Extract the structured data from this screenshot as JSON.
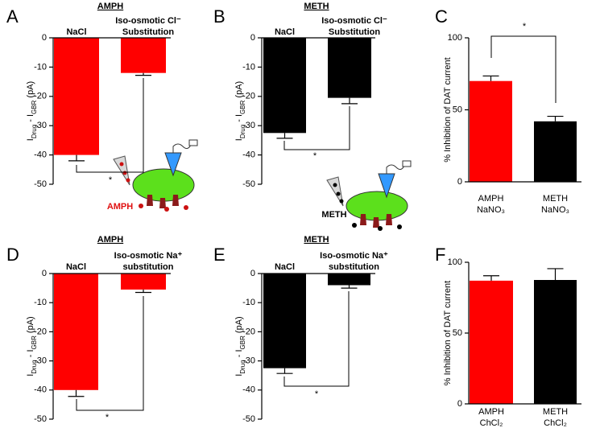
{
  "chart_data": [
    {
      "type": "bar",
      "panel": "A",
      "title": "AMPH",
      "categories": [
        [
          "NaCl"
        ],
        [
          "Iso-osmotic Cl⁻",
          "Substitution"
        ]
      ],
      "values": [
        -40,
        -12
      ],
      "errors": [
        2,
        0.8
      ],
      "colors": [
        "#ff0000",
        "#ff0000"
      ],
      "ylim": [
        -50,
        0
      ],
      "yticks": [
        0,
        -10,
        -20,
        -30,
        -40,
        -50
      ],
      "ylabel": [
        {
          "text": "I"
        },
        {
          "text": "Drug",
          "sub": true
        },
        {
          "text": " - I"
        },
        {
          "text": "GBR",
          "sub": true
        },
        {
          "text": " (pA)"
        }
      ],
      "annotation": "*",
      "illustration_label": "AMPH"
    },
    {
      "type": "bar",
      "panel": "B",
      "title": "METH",
      "categories": [
        [
          "NaCl"
        ],
        [
          "Iso-osmotic Cl⁻",
          "Substitution"
        ]
      ],
      "values": [
        -32.5,
        -20.5
      ],
      "errors": [
        1.8,
        2
      ],
      "colors": [
        "#000000",
        "#000000"
      ],
      "ylim": [
        -50,
        0
      ],
      "yticks": [
        0,
        -10,
        -20,
        -30,
        -40,
        -50
      ],
      "ylabel": [
        {
          "text": "I"
        },
        {
          "text": "Drug",
          "sub": true
        },
        {
          "text": " - I"
        },
        {
          "text": "GBR",
          "sub": true
        },
        {
          "text": " (pA)"
        }
      ],
      "annotation": "*",
      "illustration_label": "METH"
    },
    {
      "type": "bar",
      "panel": "C",
      "categories": [
        [
          "AMPH",
          "NaNO₃"
        ],
        [
          "METH",
          "NaNO₃"
        ]
      ],
      "values": [
        70,
        42
      ],
      "errors": [
        3.5,
        3.5
      ],
      "colors": [
        "#ff0000",
        "#000000"
      ],
      "ylim": [
        0,
        100
      ],
      "yticks": [
        0,
        50,
        100
      ],
      "ylabel": [
        {
          "text": "% Inhibition of DAT current"
        }
      ],
      "annotation": "*"
    },
    {
      "type": "bar",
      "panel": "D",
      "title": "AMPH",
      "categories": [
        [
          "NaCl"
        ],
        [
          "Iso-osmotic Na⁺",
          "substitution"
        ]
      ],
      "values": [
        -40,
        -5.5
      ],
      "errors": [
        2.2,
        1
      ],
      "colors": [
        "#ff0000",
        "#ff0000"
      ],
      "ylim": [
        -50,
        0
      ],
      "yticks": [
        0,
        -10,
        -20,
        -30,
        -40,
        -50
      ],
      "ylabel": [
        {
          "text": "I"
        },
        {
          "text": "Drug",
          "sub": true
        },
        {
          "text": " - I"
        },
        {
          "text": "GBR",
          "sub": true
        },
        {
          "text": " (pA)"
        }
      ],
      "annotation": "*"
    },
    {
      "type": "bar",
      "panel": "E",
      "title": "METH",
      "categories": [
        [
          "NaCl"
        ],
        [
          "Iso-osmotic Na⁺",
          "substitution"
        ]
      ],
      "values": [
        -32.5,
        -4
      ],
      "errors": [
        1.8,
        1
      ],
      "colors": [
        "#000000",
        "#000000"
      ],
      "ylim": [
        -50,
        0
      ],
      "yticks": [
        0,
        -10,
        -20,
        -30,
        -40,
        -50
      ],
      "ylabel": [
        {
          "text": "I"
        },
        {
          "text": "Drug",
          "sub": true
        },
        {
          "text": " - I"
        },
        {
          "text": "GBR",
          "sub": true
        },
        {
          "text": " (pA)"
        }
      ],
      "annotation": "*"
    },
    {
      "type": "bar",
      "panel": "F",
      "categories": [
        [
          "AMPH",
          "ChCl₂"
        ],
        [
          "METH",
          "ChCl₂"
        ]
      ],
      "values": [
        87,
        87.5
      ],
      "errors": [
        3.5,
        8
      ],
      "colors": [
        "#ff0000",
        "#000000"
      ],
      "ylim": [
        0,
        100
      ],
      "yticks": [
        0,
        50,
        100
      ],
      "ylabel": [
        {
          "text": "% Inhibition of DAT current"
        }
      ]
    }
  ]
}
